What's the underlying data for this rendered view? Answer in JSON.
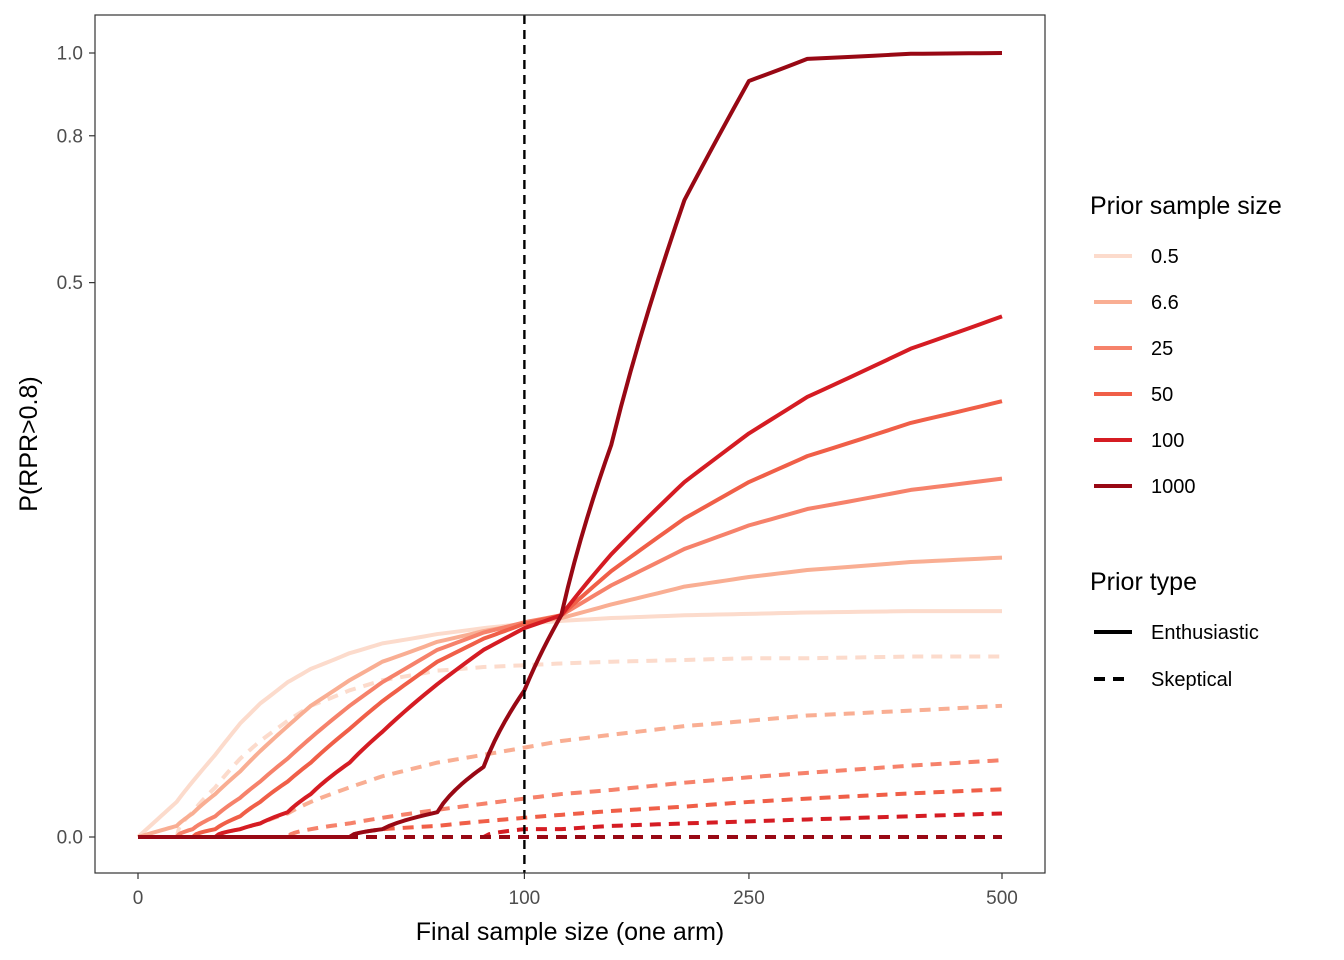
{
  "chart_data": {
    "type": "line",
    "xlabel": "Final sample size (one arm)",
    "ylabel": "P(RPR>0.8)",
    "xlim": [
      0,
      500
    ],
    "ylim": [
      0,
      1
    ],
    "x_scale": "sqrt",
    "y_scale": "sqrt",
    "x_ticks": [
      0,
      100,
      250,
      500
    ],
    "x_tick_labels": [
      "0",
      "100",
      "250",
      "500"
    ],
    "y_ticks": [
      0,
      0.5,
      0.8,
      1.0
    ],
    "y_tick_labels": [
      "0.0",
      "0.5",
      "0.8",
      "1.0"
    ],
    "reference_lines": [
      {
        "axis": "x",
        "value": 100,
        "style": "dashed",
        "color": "#000000"
      }
    ],
    "grid": false,
    "legend_position": "right",
    "legend_color": {
      "title": "Prior sample size",
      "entries": [
        {
          "label": "0.5",
          "color": "#fcdbcc"
        },
        {
          "label": "6.6",
          "color": "#f9ae93"
        },
        {
          "label": "25",
          "color": "#f6826b"
        },
        {
          "label": "50",
          "color": "#f05f48"
        },
        {
          "label": "100",
          "color": "#d51c23"
        },
        {
          "label": "1000",
          "color": "#980814"
        }
      ]
    },
    "legend_linetype": {
      "title": "Prior type",
      "entries": [
        {
          "label": "Enthusiastic",
          "dash": "solid"
        },
        {
          "label": "Skeptical",
          "dash": "dashed"
        }
      ]
    },
    "series": [
      {
        "prior": "0.5",
        "type": "Enthusiastic",
        "color": "#fcdbcc",
        "dash": "solid",
        "x": [
          0,
          1,
          2,
          4,
          7,
          10,
          15,
          20,
          30,
          40,
          60,
          80,
          100,
          120,
          150,
          200,
          250,
          300,
          400,
          500
        ],
        "y": [
          0.0,
          0.002,
          0.005,
          0.011,
          0.021,
          0.029,
          0.039,
          0.046,
          0.055,
          0.061,
          0.067,
          0.071,
          0.074,
          0.076,
          0.078,
          0.08,
          0.081,
          0.082,
          0.083,
          0.083
        ]
      },
      {
        "prior": "6.6",
        "type": "Enthusiastic",
        "color": "#f9ae93",
        "dash": "solid",
        "x": [
          0,
          1,
          2,
          4,
          7,
          10,
          15,
          20,
          30,
          40,
          60,
          80,
          100,
          120,
          150,
          200,
          250,
          300,
          400,
          500
        ],
        "y": [
          0.0,
          0.0002,
          0.0009,
          0.003,
          0.007,
          0.012,
          0.02,
          0.028,
          0.04,
          0.05,
          0.062,
          0.069,
          0.074,
          0.078,
          0.088,
          0.102,
          0.11,
          0.116,
          0.123,
          0.127
        ]
      },
      {
        "prior": "25",
        "type": "Enthusiastic",
        "color": "#f6826b",
        "dash": "solid",
        "x": [
          0,
          1,
          2,
          4,
          7,
          10,
          15,
          20,
          30,
          40,
          60,
          80,
          100,
          120,
          150,
          200,
          250,
          300,
          400,
          500
        ],
        "y": [
          0.0,
          0.0,
          0.0001,
          0.0007,
          0.0025,
          0.005,
          0.01,
          0.016,
          0.028,
          0.039,
          0.057,
          0.068,
          0.075,
          0.08,
          0.103,
          0.135,
          0.158,
          0.175,
          0.196,
          0.209
        ]
      },
      {
        "prior": "50",
        "type": "Enthusiastic",
        "color": "#f05f48",
        "dash": "solid",
        "x": [
          0,
          1,
          2,
          4,
          7,
          10,
          15,
          20,
          30,
          40,
          60,
          80,
          100,
          120,
          150,
          200,
          250,
          300,
          400,
          500
        ],
        "y": [
          0.0,
          0.0,
          0.0,
          0.0001,
          0.0007,
          0.002,
          0.005,
          0.009,
          0.019,
          0.03,
          0.05,
          0.064,
          0.074,
          0.08,
          0.115,
          0.165,
          0.205,
          0.236,
          0.279,
          0.309
        ]
      },
      {
        "prior": "100",
        "type": "Enthusiastic",
        "color": "#d51c23",
        "dash": "solid",
        "x": [
          0,
          1,
          2,
          4,
          7,
          10,
          15,
          20,
          30,
          40,
          60,
          80,
          100,
          120,
          150,
          200,
          250,
          300,
          400,
          500
        ],
        "y": [
          0.0,
          0.0,
          0.0,
          0.0,
          0.0001,
          0.0003,
          0.001,
          0.003,
          0.009,
          0.018,
          0.038,
          0.057,
          0.071,
          0.08,
          0.13,
          0.205,
          0.265,
          0.315,
          0.388,
          0.441
        ]
      },
      {
        "prior": "1000",
        "type": "Enthusiastic",
        "color": "#980814",
        "dash": "solid",
        "x": [
          0,
          1,
          2,
          4,
          7,
          10,
          15,
          20,
          30,
          40,
          60,
          80,
          100,
          120,
          150,
          200,
          250,
          300,
          400,
          500
        ],
        "y": [
          0.0,
          0.0,
          0.0,
          0.0,
          0.0,
          0.0,
          0.0,
          0.0,
          0.0,
          0.0001,
          0.001,
          0.008,
          0.035,
          0.08,
          0.25,
          0.66,
          0.93,
          0.985,
          0.998,
          1.0
        ]
      },
      {
        "prior": "0.5",
        "type": "Skeptical",
        "color": "#fcdbcc",
        "dash": "dashed",
        "x": [
          0,
          1,
          2,
          4,
          7,
          10,
          15,
          20,
          30,
          40,
          60,
          80,
          100,
          120,
          150,
          200,
          250,
          300,
          400,
          500
        ],
        "y": [
          0.0,
          0.0,
          0.001,
          0.004,
          0.01,
          0.015,
          0.022,
          0.028,
          0.035,
          0.04,
          0.045,
          0.047,
          0.048,
          0.049,
          0.05,
          0.051,
          0.052,
          0.052,
          0.053,
          0.053
        ]
      },
      {
        "prior": "6.6",
        "type": "Skeptical",
        "color": "#f9ae93",
        "dash": "dashed",
        "x": [
          0,
          1,
          2,
          4,
          7,
          10,
          15,
          20,
          30,
          40,
          60,
          80,
          100,
          120,
          150,
          200,
          250,
          300,
          400,
          500
        ],
        "y": [
          0.0,
          0.0,
          0.0,
          0.0,
          0.0001,
          0.0003,
          0.0009,
          0.002,
          0.004,
          0.006,
          0.009,
          0.011,
          0.013,
          0.015,
          0.017,
          0.02,
          0.022,
          0.024,
          0.026,
          0.028
        ]
      },
      {
        "prior": "25",
        "type": "Skeptical",
        "color": "#f6826b",
        "dash": "dashed",
        "x": [
          0,
          1,
          2,
          4,
          7,
          10,
          15,
          20,
          30,
          40,
          60,
          80,
          100,
          120,
          150,
          200,
          250,
          300,
          400,
          500
        ],
        "y": [
          0.0,
          0.0,
          0.0,
          0.0,
          0.0,
          0.0,
          0.0,
          0.0001,
          0.0003,
          0.0006,
          0.0012,
          0.0018,
          0.0024,
          0.003,
          0.0036,
          0.0048,
          0.0058,
          0.0067,
          0.0083,
          0.0096
        ]
      },
      {
        "prior": "50",
        "type": "Skeptical",
        "color": "#f05f48",
        "dash": "dashed",
        "x": [
          0,
          1,
          2,
          4,
          7,
          10,
          15,
          20,
          30,
          40,
          60,
          80,
          100,
          120,
          150,
          200,
          250,
          300,
          400,
          500
        ],
        "y": [
          0.0,
          0.0,
          0.0,
          0.0,
          0.0,
          0.0,
          0.0,
          0.0,
          0.0,
          0.0001,
          0.0002,
          0.0004,
          0.0006,
          0.0008,
          0.0011,
          0.0015,
          0.002,
          0.0024,
          0.0031,
          0.0037
        ]
      },
      {
        "prior": "100",
        "type": "Skeptical",
        "color": "#d51c23",
        "dash": "dashed",
        "x": [
          0,
          1,
          2,
          4,
          7,
          10,
          15,
          20,
          30,
          40,
          60,
          80,
          100,
          120,
          150,
          200,
          250,
          300,
          400,
          500
        ],
        "y": [
          0.0,
          0.0,
          0.0,
          0.0,
          0.0,
          0.0,
          0.0,
          0.0,
          0.0,
          0.0,
          0.0,
          0.0,
          0.0001,
          0.0001,
          0.0002,
          0.0003,
          0.0004,
          0.0005,
          0.0007,
          0.0009
        ]
      },
      {
        "prior": "1000",
        "type": "Skeptical",
        "color": "#980814",
        "dash": "dashed",
        "x": [
          0,
          1,
          2,
          4,
          7,
          10,
          15,
          20,
          30,
          40,
          60,
          80,
          100,
          120,
          150,
          200,
          250,
          300,
          400,
          500
        ],
        "y": [
          0.0,
          0.0,
          0.0,
          0.0,
          0.0,
          0.0,
          0.0,
          0.0,
          0.0,
          0.0,
          0.0,
          0.0,
          0.0,
          0.0,
          0.0,
          0.0,
          0.0,
          0.0,
          0.0,
          0.0
        ]
      }
    ]
  }
}
